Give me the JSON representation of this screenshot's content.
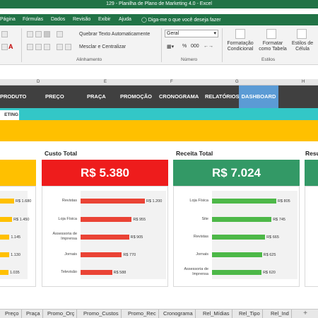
{
  "window": {
    "title": "129 - Planilha de Plano de Marketing 4.0  -  Excel"
  },
  "ribbon_tabs": [
    "Página",
    "Fórmulas",
    "Dados",
    "Revisão",
    "Exibir",
    "Ajuda"
  ],
  "tell_me": "Diga-me o que você deseja fazer",
  "ribbon": {
    "wrap_text": "Quebrar Texto Automaticamente",
    "merge_center": "Mesclar e Centralizar",
    "alignment_group": "Alinhamento",
    "number_format": "Geral",
    "number_group": "Número",
    "percent_symbol": "%",
    "thousands_symbol": "000",
    "conditional_format": "Formatação Condicional",
    "format_table": "Formatar como Tabela",
    "cell_styles": "Estilos de Célula",
    "styles_group": "Estilos",
    "font_color_letter": "A"
  },
  "column_headers": [
    "D",
    "E",
    "F",
    "G",
    "H"
  ],
  "nav": {
    "items": [
      "PRODUTO",
      "PREÇO",
      "PRAÇA",
      "PROMOÇÃO",
      "CRONOGRAMA",
      "RELATÓRIOS",
      "DASHBOARD"
    ],
    "active": "DASHBOARD",
    "sub_tab": "ETING"
  },
  "cards": [
    {
      "title": "Custo Total",
      "kpi": "R$ 5.380",
      "color": "#ee1c1c",
      "bar_color": "#ea4335",
      "chart_data": {
        "type": "bar",
        "orientation": "horizontal",
        "categories": [
          "Revistas",
          "Loja Física",
          "Assessoria de Imprensa",
          "Jornais",
          "Televisão"
        ],
        "values": [
          1200,
          955,
          905,
          770,
          588
        ],
        "labels": [
          "R$ 1.200",
          "R$ 955",
          "R$ 905",
          "R$ 770",
          "R$ 588"
        ]
      }
    },
    {
      "title": "Receita Total",
      "kpi": "R$ 7.024",
      "color": "#339966",
      "bar_color": "#4db848",
      "chart_data": {
        "type": "bar",
        "orientation": "horizontal",
        "categories": [
          "Loja Física",
          "Site",
          "Revistas",
          "Jornais",
          "Assessoria de Imprensa"
        ],
        "values": [
          805,
          745,
          665,
          625,
          620
        ],
        "labels": [
          "R$ 805",
          "R$ 745",
          "R$ 665",
          "R$ 625",
          "R$ 620"
        ]
      }
    }
  ],
  "left_partial": {
    "chart_data": {
      "type": "bar",
      "orientation": "horizontal",
      "values": [
        1680,
        1450,
        1145,
        1130,
        1035
      ],
      "labels": [
        "R$ 1.680",
        "R$ 1.450",
        "1.145",
        "1.130",
        "1.035"
      ]
    }
  },
  "right_partial": {
    "title": "Resu"
  },
  "sheet_tabs": [
    "Preço",
    "Praça",
    "Promo_Orç",
    "Promo_Custos",
    "Promo_Rec",
    "Cronograma",
    "Rel_Mídias",
    "Rel_Tipo",
    "Rel_Ind"
  ],
  "add_sheet": "+"
}
